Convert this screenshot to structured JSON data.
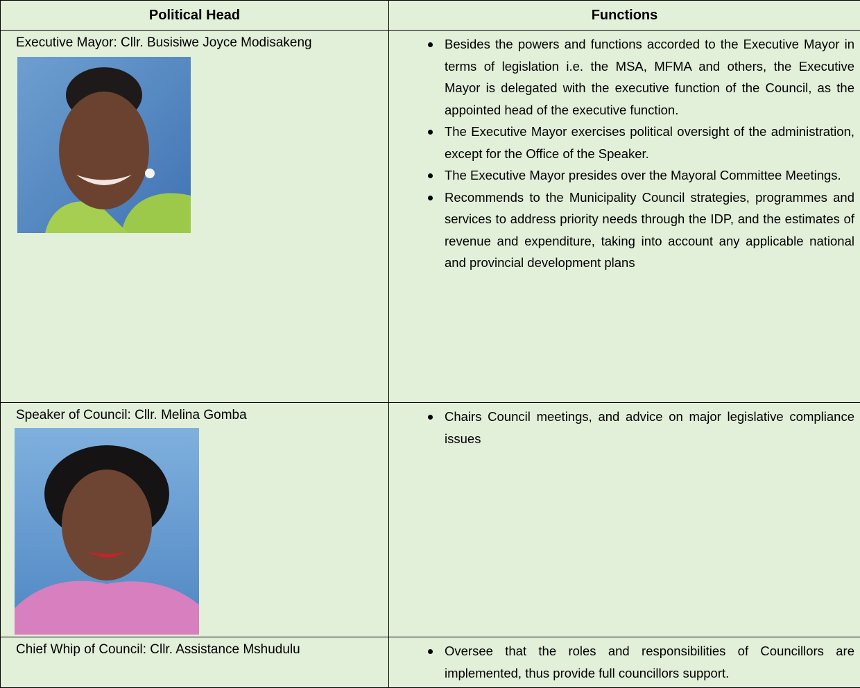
{
  "table": {
    "headers": [
      "Political Head",
      "Functions"
    ],
    "rows": [
      {
        "political_head": "Executive Mayor: Cllr. Busisiwe Joyce Modisakeng",
        "functions": [
          "Besides the powers and functions accorded to the Executive Mayor in terms of legislation i.e. the MSA, MFMA and others, the Executive Mayor is delegated with the executive function of the Council, as the appointed head of the executive function.",
          "The Executive Mayor exercises political oversight of the administration, except for the Office of the Speaker.",
          "The Executive Mayor presides over the Mayoral Committee Meetings.",
          "Recommends to the Municipality Council strategies, programmes and services to address priority needs through the IDP, and the estimates of revenue and expenditure, taking into account any applicable national and provincial development plans"
        ]
      },
      {
        "political_head": "Speaker of Council: Cllr. Melina Gomba",
        "functions": [
          "Chairs Council meetings, and advice on major legislative compliance issues"
        ]
      },
      {
        "political_head": "Chief Whip of Council: Cllr. Assistance Mshudulu",
        "functions": [
          "Oversee that the roles and responsibilities of Councillors are implemented, thus provide full councillors support."
        ]
      }
    ]
  }
}
